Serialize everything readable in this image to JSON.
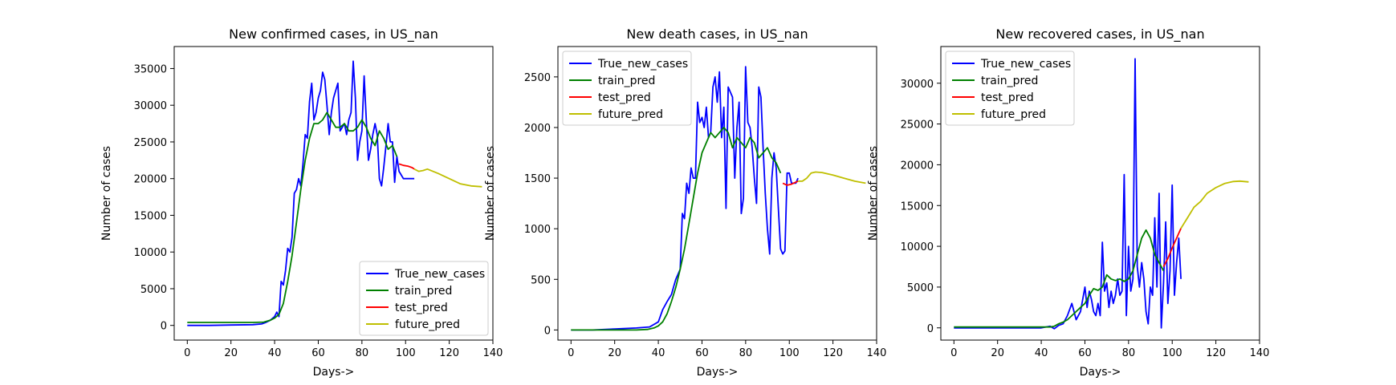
{
  "figure": {
    "colors": {
      "True_new_cases": "#0000ff",
      "train_pred": "#008000",
      "test_pred": "#ff0000",
      "future_pred": "#bfbf00"
    }
  },
  "chart_data": [
    {
      "type": "line",
      "title": "New confirmed cases, in US_nan",
      "xlabel": "Days->",
      "ylabel": "Number of cases",
      "xlim": [
        -6,
        140
      ],
      "ylim": [
        -2000,
        38000
      ],
      "xticks": [
        0,
        20,
        40,
        60,
        80,
        100,
        120,
        140
      ],
      "yticks": [
        0,
        5000,
        10000,
        15000,
        20000,
        25000,
        30000,
        35000
      ],
      "legend": "lower-right",
      "series": [
        {
          "name": "True_new_cases",
          "color": "#0000ff",
          "x": [
            0,
            10,
            20,
            30,
            34,
            36,
            38,
            40,
            41,
            42,
            43,
            44,
            45,
            46,
            47,
            48,
            49,
            50,
            51,
            52,
            53,
            54,
            55,
            56,
            57,
            58,
            59,
            60,
            61,
            62,
            63,
            64,
            65,
            66,
            67,
            68,
            69,
            70,
            71,
            72,
            73,
            74,
            75,
            76,
            77,
            78,
            79,
            80,
            81,
            82,
            83,
            84,
            85,
            86,
            87,
            88,
            89,
            90,
            91,
            92,
            93,
            94,
            95,
            96,
            97,
            98,
            99,
            100,
            101,
            102,
            103,
            104
          ],
          "y": [
            0,
            0,
            50,
            100,
            200,
            400,
            700,
            1200,
            1800,
            1200,
            6000,
            5500,
            7500,
            10500,
            10000,
            12000,
            18000,
            18500,
            20000,
            19000,
            22000,
            26000,
            25500,
            30500,
            33000,
            28000,
            29000,
            31000,
            32000,
            34500,
            33500,
            30000,
            26000,
            29000,
            31000,
            32000,
            33000,
            26500,
            27000,
            27500,
            26000,
            28000,
            29000,
            36000,
            31000,
            22500,
            25000,
            26500,
            34000,
            28000,
            22500,
            24000,
            26000,
            27500,
            26000,
            20000,
            19000,
            21500,
            24500,
            27500,
            25000,
            25000,
            19500,
            23000,
            21000,
            20500,
            20000,
            20000,
            20000,
            20000,
            20000,
            20000
          ]
        },
        {
          "name": "train_pred",
          "color": "#008000",
          "x": [
            0,
            10,
            20,
            30,
            35,
            38,
            40,
            42,
            44,
            46,
            48,
            50,
            52,
            54,
            56,
            58,
            60,
            62,
            64,
            66,
            68,
            70,
            72,
            74,
            76,
            78,
            80,
            82,
            84,
            86,
            88,
            90,
            92,
            94,
            96
          ],
          "y": [
            400,
            400,
            400,
            400,
            450,
            700,
            1000,
            1500,
            3000,
            6000,
            9500,
            14000,
            18500,
            22500,
            25500,
            27500,
            27500,
            28000,
            29000,
            28000,
            27000,
            27000,
            27500,
            26500,
            26500,
            27000,
            28000,
            27000,
            25500,
            24500,
            26500,
            25500,
            24000,
            24500,
            23000
          ]
        },
        {
          "name": "test_pred",
          "color": "#ff0000",
          "x": [
            97,
            99,
            101,
            103,
            104
          ],
          "y": [
            22000,
            21800,
            21700,
            21500,
            21300
          ]
        },
        {
          "name": "future_pred",
          "color": "#bfbf00",
          "x": [
            104,
            106,
            108,
            110,
            115,
            120,
            125,
            130,
            135
          ],
          "y": [
            21300,
            21000,
            21100,
            21300,
            20700,
            20000,
            19300,
            19000,
            18900
          ]
        }
      ]
    },
    {
      "type": "line",
      "title": "New death cases, in US_nan",
      "xlabel": "Days->",
      "ylabel": "Number of cases",
      "xlim": [
        -6,
        140
      ],
      "ylim": [
        -100,
        2800
      ],
      "xticks": [
        0,
        20,
        40,
        60,
        80,
        100,
        120,
        140
      ],
      "yticks": [
        0,
        500,
        1000,
        1500,
        2000,
        2500
      ],
      "legend": "top-left",
      "series": [
        {
          "name": "True_new_cases",
          "color": "#0000ff",
          "x": [
            0,
            10,
            20,
            30,
            36,
            40,
            42,
            44,
            46,
            48,
            50,
            51,
            52,
            53,
            54,
            55,
            56,
            57,
            58,
            59,
            60,
            61,
            62,
            63,
            64,
            65,
            66,
            67,
            68,
            69,
            70,
            71,
            72,
            73,
            74,
            75,
            76,
            77,
            78,
            79,
            80,
            81,
            82,
            83,
            84,
            85,
            86,
            87,
            88,
            89,
            90,
            91,
            92,
            93,
            94,
            95,
            96,
            97,
            98,
            99,
            100,
            101,
            102,
            103,
            104
          ],
          "y": [
            0,
            0,
            10,
            20,
            30,
            80,
            200,
            280,
            350,
            500,
            600,
            1150,
            1100,
            1450,
            1350,
            1600,
            1500,
            1500,
            2250,
            2050,
            2100,
            2000,
            2200,
            1900,
            1950,
            2400,
            2500,
            2250,
            2550,
            1900,
            2200,
            1200,
            2400,
            2350,
            2300,
            1500,
            2000,
            2250,
            1150,
            1300,
            2600,
            2050,
            2000,
            1800,
            1500,
            1250,
            2400,
            2300,
            1800,
            1350,
            1000,
            750,
            1500,
            1750,
            1600,
            1200,
            800,
            750,
            780,
            1550,
            1550,
            1450,
            1450,
            1450,
            1500
          ]
        },
        {
          "name": "train_pred",
          "color": "#008000",
          "x": [
            0,
            10,
            20,
            30,
            35,
            38,
            40,
            42,
            44,
            46,
            48,
            50,
            52,
            54,
            56,
            58,
            60,
            62,
            64,
            66,
            68,
            70,
            72,
            74,
            76,
            78,
            80,
            82,
            84,
            86,
            88,
            90,
            92,
            94,
            96
          ],
          "y": [
            0,
            0,
            0,
            0,
            5,
            20,
            40,
            80,
            160,
            280,
            420,
            600,
            800,
            1050,
            1300,
            1550,
            1750,
            1850,
            1950,
            1900,
            1950,
            2000,
            1950,
            1800,
            1900,
            1850,
            1800,
            1900,
            1850,
            1700,
            1750,
            1800,
            1700,
            1650,
            1550
          ]
        },
        {
          "name": "test_pred",
          "color": "#ff0000",
          "x": [
            97,
            99,
            101,
            103,
            104
          ],
          "y": [
            1450,
            1430,
            1440,
            1460,
            1470
          ]
        },
        {
          "name": "future_pred",
          "color": "#bfbf00",
          "x": [
            104,
            106,
            108,
            110,
            112,
            115,
            120,
            125,
            130,
            135
          ],
          "y": [
            1470,
            1470,
            1500,
            1550,
            1560,
            1555,
            1530,
            1500,
            1470,
            1450
          ]
        }
      ]
    },
    {
      "type": "line",
      "title": "New recovered cases, in US_nan",
      "xlabel": "Days->",
      "ylabel": "Number of cases",
      "xlim": [
        -6,
        140
      ],
      "ylim": [
        -1500,
        34500
      ],
      "xticks": [
        0,
        20,
        40,
        60,
        80,
        100,
        120,
        140
      ],
      "yticks": [
        0,
        5000,
        10000,
        15000,
        20000,
        25000,
        30000
      ],
      "legend": "top-left",
      "series": [
        {
          "name": "True_new_cases",
          "color": "#0000ff",
          "x": [
            0,
            10,
            20,
            30,
            40,
            44,
            46,
            48,
            50,
            52,
            54,
            56,
            58,
            60,
            61,
            62,
            63,
            64,
            65,
            66,
            67,
            68,
            69,
            70,
            71,
            72,
            73,
            74,
            75,
            76,
            77,
            78,
            79,
            80,
            81,
            82,
            83,
            84,
            85,
            86,
            87,
            88,
            89,
            90,
            91,
            92,
            93,
            94,
            95,
            96,
            97,
            98,
            99,
            100,
            101,
            102,
            103,
            104
          ],
          "y": [
            0,
            0,
            0,
            0,
            0,
            200,
            -100,
            300,
            500,
            1500,
            3000,
            1000,
            2000,
            5000,
            2500,
            4500,
            3500,
            2000,
            1500,
            3000,
            1500,
            10500,
            4500,
            5500,
            2500,
            4500,
            3000,
            4000,
            6000,
            4000,
            4500,
            18800,
            1500,
            10000,
            4500,
            6000,
            33000,
            7500,
            5000,
            8000,
            6000,
            2000,
            500,
            5000,
            4000,
            13500,
            5000,
            16500,
            0,
            5500,
            13000,
            3000,
            7000,
            17500,
            4000,
            8000,
            11000,
            6000
          ]
        },
        {
          "name": "train_pred",
          "color": "#008000",
          "x": [
            0,
            10,
            20,
            30,
            40,
            44,
            46,
            48,
            50,
            52,
            54,
            56,
            58,
            60,
            62,
            64,
            66,
            68,
            70,
            72,
            74,
            76,
            78,
            80,
            82,
            84,
            86,
            88,
            90,
            92,
            94,
            96
          ],
          "y": [
            100,
            100,
            100,
            100,
            100,
            100,
            200,
            500,
            700,
            1000,
            1500,
            2000,
            2500,
            3000,
            4000,
            4800,
            4600,
            5000,
            6500,
            6000,
            5800,
            6000,
            5700,
            6000,
            7000,
            9000,
            11000,
            12000,
            11000,
            9000,
            8000,
            7000
          ]
        },
        {
          "name": "test_pred",
          "color": "#ff0000",
          "x": [
            96,
            98,
            100,
            102,
            104
          ],
          "y": [
            7500,
            8500,
            9800,
            11000,
            12200
          ]
        },
        {
          "name": "future_pred",
          "color": "#bfbf00",
          "x": [
            104,
            107,
            110,
            113,
            116,
            120,
            124,
            128,
            131,
            135
          ],
          "y": [
            12200,
            13500,
            14800,
            15500,
            16500,
            17200,
            17700,
            17950,
            18000,
            17900
          ]
        }
      ]
    }
  ]
}
